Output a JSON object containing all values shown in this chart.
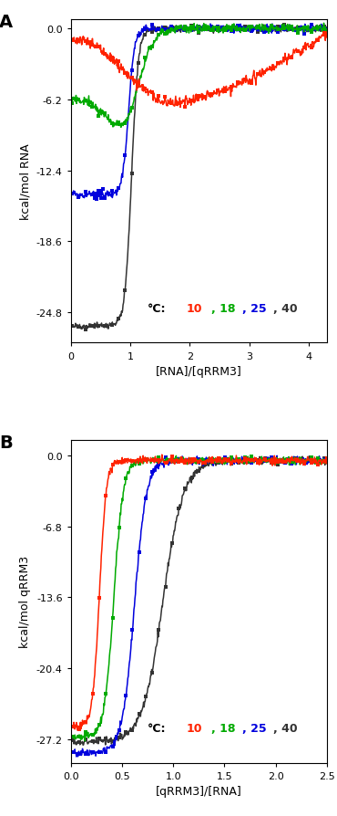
{
  "panel_A": {
    "xlabel": "[RNA]/[qRRM3]",
    "ylabel": "kcal/mol RNA",
    "xlim": [
      0,
      4.3
    ],
    "ylim": [
      -27.5,
      0.8
    ],
    "yticks": [
      0.0,
      -6.2,
      -12.4,
      -18.6,
      -24.8
    ],
    "xticks": [
      0,
      1,
      2,
      3,
      4
    ],
    "colors": {
      "10": "#ff2200",
      "18": "#00aa00",
      "25": "#0000dd",
      "40": "#333333"
    }
  },
  "panel_B": {
    "xlabel": "[qRRM3]/[RNA]",
    "ylabel": "kcal/mol qRRM3",
    "xlim": [
      0.0,
      2.5
    ],
    "ylim": [
      -29.5,
      1.5
    ],
    "yticks": [
      0.0,
      -6.8,
      -13.6,
      -20.4,
      -27.2
    ],
    "xticks": [
      0.0,
      0.5,
      1.0,
      1.5,
      2.0,
      2.5
    ],
    "colors": {
      "10": "#ff2200",
      "18": "#00aa00",
      "25": "#0000dd",
      "40": "#333333"
    }
  }
}
